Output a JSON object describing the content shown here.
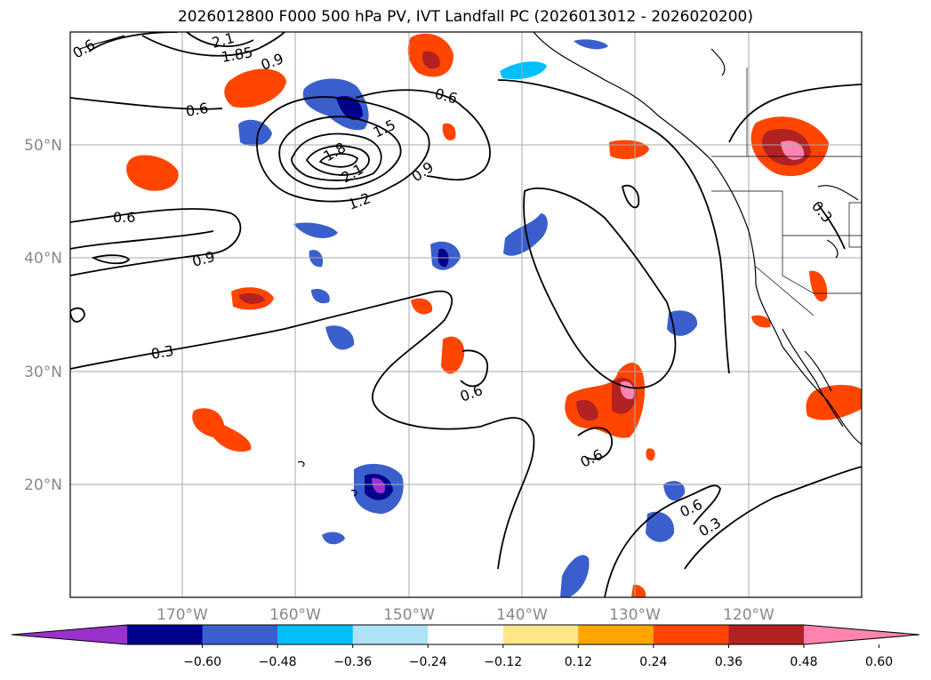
{
  "title": "2026012800 F000 500 hPa PV, IVT Landfall PC (2026013012 - 2026020200)",
  "map": {
    "lat_labels": [
      "50°N",
      "40°N",
      "30°N",
      "20°N"
    ],
    "lon_labels": [
      "170°W",
      "160°W",
      "150°W",
      "140°W",
      "130°W",
      "120°W"
    ],
    "contour_labels": [
      "0.6",
      "2.1",
      "1.85",
      "0.9",
      "0.6",
      "0.6",
      "1.5",
      "1.8",
      "2.1",
      "0.9",
      "1.2",
      "0.6",
      "0.9",
      "0.3",
      "0.6",
      "0.6",
      "0.6",
      "0.3",
      "0.3"
    ]
  },
  "colorbar": {
    "ticks": [
      "−0.60",
      "−0.48",
      "−0.36",
      "−0.24",
      "−0.12",
      "0.12",
      "0.24",
      "0.36",
      "0.48",
      "0.60"
    ],
    "colors": [
      "#9932cc",
      "#00008b",
      "#3a5fcd",
      "#00bfff",
      "#aee3f7",
      "#ffffff",
      "#ffe68a",
      "#ffa500",
      "#ff4500",
      "#b22222",
      "#ff85b0"
    ]
  }
}
